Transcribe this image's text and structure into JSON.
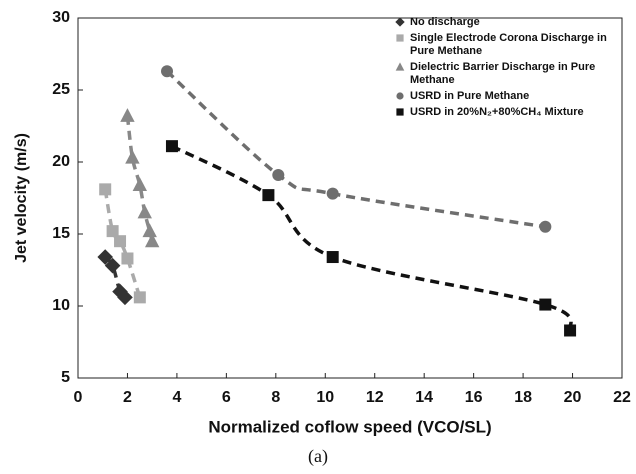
{
  "chart_data": {
    "type": "scatter",
    "xlabel": "Normalized coflow speed (VCO/SL)",
    "ylabel": "Jet velocity (m/s)",
    "caption": "(a)",
    "xlim": [
      0,
      22
    ],
    "xticks": [
      0,
      2,
      4,
      6,
      8,
      10,
      12,
      14,
      16,
      18,
      20,
      22
    ],
    "ylim": [
      5,
      30
    ],
    "yticks": [
      5,
      10,
      15,
      20,
      25,
      30
    ],
    "trend_lines": "dashed",
    "series": [
      {
        "name": "No discharge",
        "color": "#333333",
        "marker": "diamond",
        "x": [
          1.1,
          1.4,
          1.7,
          1.9
        ],
        "values": [
          13.4,
          12.8,
          11.0,
          10.6
        ]
      },
      {
        "name": "Single Electrode Corona Discharge in Pure Methane",
        "color": "#aaaaaa",
        "marker": "square",
        "x": [
          1.1,
          1.4,
          1.7,
          2.0,
          2.5
        ],
        "values": [
          18.1,
          15.2,
          14.5,
          13.3,
          10.6
        ]
      },
      {
        "name": "Dielectric Barrier Discharge in Pure Methane",
        "color": "#888888",
        "marker": "triangle",
        "x": [
          2.0,
          2.2,
          2.5,
          2.7,
          2.9,
          3.0
        ],
        "values": [
          23.2,
          20.3,
          18.4,
          16.5,
          15.2,
          14.5
        ]
      },
      {
        "name": "USRD in Pure Methane",
        "color": "#6e6e6e",
        "marker": "circle",
        "x": [
          3.6,
          8.1,
          10.3,
          18.9
        ],
        "values": [
          26.3,
          19.1,
          17.8,
          15.5
        ]
      },
      {
        "name": "USRD in 20%N₂+80%CH₄ Mixture",
        "color": "#111111",
        "marker": "square",
        "x": [
          3.8,
          7.7,
          10.3,
          18.9,
          19.9
        ],
        "values": [
          21.1,
          17.7,
          13.4,
          10.1,
          8.3
        ]
      }
    ]
  }
}
